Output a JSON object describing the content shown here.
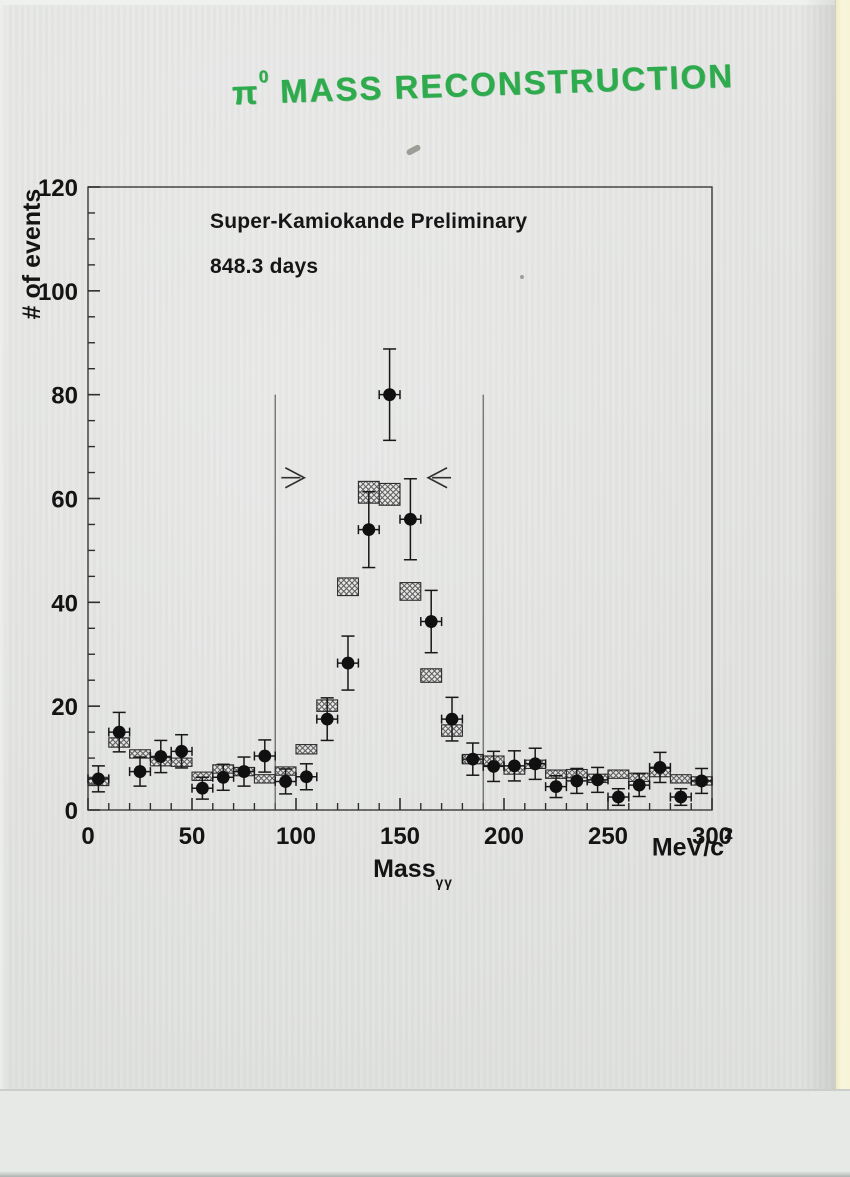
{
  "handwritten_title": {
    "pi": "π",
    "sup": "0",
    "rest": " MASS RECONSTRUCTION"
  },
  "colors": {
    "marker_green": "#2dab4d",
    "paper": "#e2e3e1",
    "scanner_edge_cream": "#f7f4d8",
    "ink": "#161616"
  },
  "chart_data": {
    "type": "scatter",
    "description": "Scanned histogram: pi0 two-photon invariant mass reconstruction; black dots = data with error bars, cross-hatched boxes = prediction; vertical lines with inward arrows mark the 90-190 MeV/c2 signal window",
    "annotations": [
      "Super-Kamiokande Preliminary",
      "848.3 days"
    ],
    "ylabel": "# of events",
    "xlabel_main": "Mass",
    "xlabel_sub": "γγ",
    "x_unit_main": "MeV/c",
    "x_unit_sup": "2",
    "xlim": [
      0,
      300
    ],
    "ylim": [
      0,
      120
    ],
    "x_ticks": [
      0,
      50,
      100,
      150,
      200,
      250,
      300
    ],
    "y_ticks": [
      0,
      20,
      40,
      60,
      80,
      100,
      120
    ],
    "x_minor_step": 10,
    "y_minor_step": 5,
    "bin_width": 10,
    "grid": false,
    "legend": "none",
    "signal_window": {
      "x_low": 90,
      "x_high": 190,
      "line_top": 80,
      "arrow_y": 64,
      "left_arrow_tip_x": 104,
      "right_arrow_tip_x": 163.5
    },
    "series": [
      {
        "name": "Data (filled circles with error bars)",
        "marker": "filled-circle",
        "x": [
          5,
          15,
          25,
          35,
          45,
          55,
          65,
          75,
          85,
          95,
          105,
          115,
          125,
          135,
          145,
          155,
          165,
          175,
          185,
          195,
          205,
          215,
          225,
          235,
          245,
          255,
          265,
          275,
          285,
          295
        ],
        "y": [
          6,
          15,
          7.4,
          10.3,
          11.3,
          4.2,
          6.3,
          7.4,
          10.4,
          5.5,
          6.4,
          17.5,
          28.3,
          54,
          80,
          56,
          36.3,
          17.5,
          9.8,
          8.4,
          8.5,
          8.9,
          4.5,
          5.6,
          5.8,
          2.5,
          4.8,
          8.2,
          2.5,
          5.6
        ],
        "yerr": [
          2.5,
          3.8,
          2.8,
          3.1,
          3.2,
          2.1,
          2.5,
          2.8,
          3.1,
          2.4,
          2.5,
          4.1,
          5.2,
          7.3,
          8.8,
          7.8,
          6,
          4.2,
          3.1,
          2.9,
          2.9,
          3,
          2.1,
          2.4,
          2.4,
          1.6,
          2.2,
          2.9,
          1.6,
          2.4
        ],
        "xerr_half": 5
      },
      {
        "name": "MC prediction (cross-hatched boxes)",
        "marker": "crosshatch-box",
        "x": [
          5,
          15,
          25,
          35,
          45,
          55,
          65,
          75,
          85,
          95,
          105,
          115,
          125,
          135,
          145,
          155,
          165,
          175,
          185,
          195,
          205,
          215,
          225,
          235,
          245,
          255,
          265,
          275,
          285,
          295
        ],
        "y": [
          5.5,
          13,
          10.8,
          9.3,
          9.2,
          6.5,
          7.9,
          7.4,
          6,
          7.5,
          11.7,
          20.1,
          43,
          61.2,
          60.8,
          42.1,
          25.9,
          15.3,
          9.8,
          9.5,
          7.7,
          8.8,
          6.9,
          7,
          6.1,
          6.9,
          6.3,
          7.2,
          6,
          5.6
        ],
        "half_height": [
          0.8,
          0.9,
          0.8,
          0.8,
          0.8,
          0.8,
          0.8,
          0.8,
          0.8,
          0.8,
          0.9,
          1.1,
          1.7,
          2.1,
          2.1,
          1.7,
          1.3,
          1.1,
          0.9,
          0.9,
          0.8,
          0.8,
          0.8,
          0.8,
          0.8,
          0.8,
          0.8,
          0.8,
          0.8,
          0.8
        ]
      }
    ]
  }
}
